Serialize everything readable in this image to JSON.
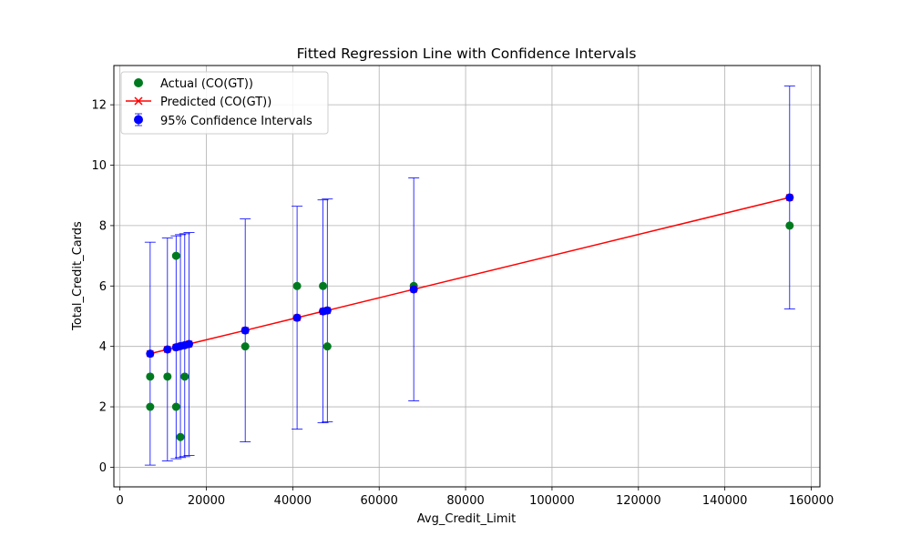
{
  "chart_data": {
    "type": "scatter",
    "title": "Fitted Regression Line with Confidence Intervals",
    "xlabel": "Avg_Credit_Limit",
    "ylabel": "Total_Credit_Cards",
    "xlim": [
      -1400,
      162000
    ],
    "ylim": [
      -0.65,
      13.3
    ],
    "xticks": [
      0,
      20000,
      40000,
      60000,
      80000,
      100000,
      120000,
      140000,
      160000
    ],
    "yticks": [
      0,
      2,
      4,
      6,
      8,
      10,
      12
    ],
    "grid": true,
    "legend_position": "top-left",
    "series": [
      {
        "name": "Actual (CO(GT))",
        "kind": "scatter",
        "color": "#007a1f",
        "points": [
          {
            "x": 7000,
            "y": 2
          },
          {
            "x": 7000,
            "y": 3
          },
          {
            "x": 11000,
            "y": 3
          },
          {
            "x": 13000,
            "y": 2
          },
          {
            "x": 13000,
            "y": 7
          },
          {
            "x": 14000,
            "y": 1
          },
          {
            "x": 15000,
            "y": 3
          },
          {
            "x": 29000,
            "y": 4
          },
          {
            "x": 41000,
            "y": 6
          },
          {
            "x": 47000,
            "y": 6
          },
          {
            "x": 48000,
            "y": 4
          },
          {
            "x": 68000,
            "y": 6
          },
          {
            "x": 155000,
            "y": 8
          }
        ]
      },
      {
        "name": "Predicted (CO(GT))",
        "kind": "line",
        "color": "#ff0000",
        "marker": "x",
        "points": [
          {
            "x": 7000,
            "y": 3.76
          },
          {
            "x": 11000,
            "y": 3.9
          },
          {
            "x": 13000,
            "y": 3.97
          },
          {
            "x": 14000,
            "y": 4.01
          },
          {
            "x": 15000,
            "y": 4.04
          },
          {
            "x": 16000,
            "y": 4.08
          },
          {
            "x": 29000,
            "y": 4.53
          },
          {
            "x": 41000,
            "y": 4.95
          },
          {
            "x": 47000,
            "y": 5.16
          },
          {
            "x": 48000,
            "y": 5.19
          },
          {
            "x": 68000,
            "y": 5.89
          },
          {
            "x": 155000,
            "y": 8.93
          }
        ]
      },
      {
        "name": "95% Confidence Intervals",
        "kind": "errorbar",
        "color": "#0000ff",
        "points": [
          {
            "x": 7000,
            "y": 3.76,
            "lower": 0.07,
            "upper": 7.45
          },
          {
            "x": 11000,
            "y": 3.9,
            "lower": 0.21,
            "upper": 7.59
          },
          {
            "x": 13000,
            "y": 3.97,
            "lower": 0.28,
            "upper": 7.66
          },
          {
            "x": 14000,
            "y": 4.01,
            "lower": 0.32,
            "upper": 7.7
          },
          {
            "x": 15000,
            "y": 4.04,
            "lower": 0.35,
            "upper": 7.73
          },
          {
            "x": 16000,
            "y": 4.08,
            "lower": 0.39,
            "upper": 7.77
          },
          {
            "x": 29000,
            "y": 4.53,
            "lower": 0.84,
            "upper": 8.22
          },
          {
            "x": 41000,
            "y": 4.95,
            "lower": 1.26,
            "upper": 8.64
          },
          {
            "x": 47000,
            "y": 5.16,
            "lower": 1.47,
            "upper": 8.85
          },
          {
            "x": 48000,
            "y": 5.19,
            "lower": 1.5,
            "upper": 8.88
          },
          {
            "x": 68000,
            "y": 5.89,
            "lower": 2.2,
            "upper": 9.58
          },
          {
            "x": 155000,
            "y": 8.93,
            "lower": 5.24,
            "upper": 12.62
          }
        ]
      }
    ]
  }
}
